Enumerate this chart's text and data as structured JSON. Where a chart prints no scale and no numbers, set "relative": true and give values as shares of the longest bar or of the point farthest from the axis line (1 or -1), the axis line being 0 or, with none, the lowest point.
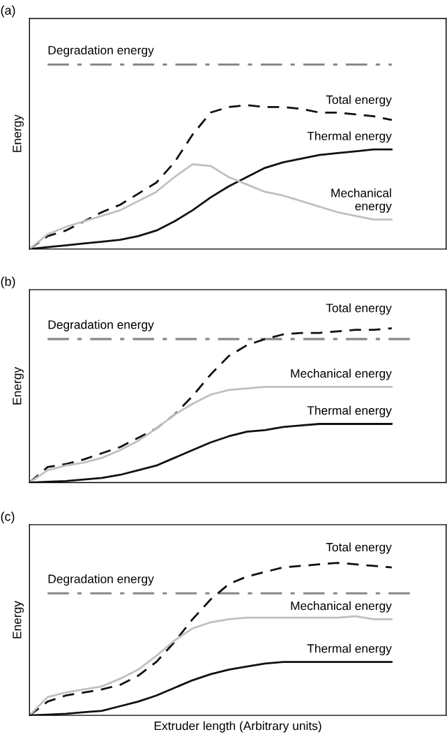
{
  "chart_data": [
    {
      "type": "line",
      "title": "(a)",
      "ylabel": "Energy",
      "relative": true,
      "categories": [
        null,
        null,
        null,
        null,
        null,
        null,
        null,
        null,
        null,
        null,
        null,
        null,
        null,
        null,
        null,
        null,
        null,
        null,
        null,
        null,
        null,
        null,
        null,
        null
      ],
      "series": [
        {
          "name": "Degradation energy",
          "color": "#888888",
          "line_style": "dashdot",
          "values": [
            null,
            1,
            1,
            1,
            1,
            1,
            1,
            1,
            1,
            1,
            1,
            1,
            1,
            1,
            1,
            1,
            1,
            1,
            1,
            1,
            1,
            null,
            null,
            null
          ]
        },
        {
          "name": "Total energy",
          "color": "#111111",
          "line_style": "dashed",
          "values": [
            0,
            0.07,
            0.1,
            0.15,
            0.2,
            0.24,
            0.3,
            0.36,
            0.47,
            0.62,
            0.74,
            0.77,
            0.78,
            0.77,
            0.77,
            0.76,
            0.74,
            0.74,
            0.73,
            0.72,
            0.7,
            null,
            null,
            null
          ]
        },
        {
          "name": "Thermal energy",
          "color": "#111111",
          "line_style": "solid",
          "values": [
            0,
            0.01,
            0.02,
            0.03,
            0.04,
            0.05,
            0.07,
            0.1,
            0.15,
            0.21,
            0.28,
            0.34,
            0.39,
            0.44,
            0.47,
            0.49,
            0.51,
            0.52,
            0.53,
            0.54,
            0.54,
            null,
            null,
            null
          ]
        },
        {
          "name": "Mechanical\nenergy",
          "color": "#c0c0c0",
          "line_style": "solid",
          "values": [
            0,
            0.08,
            0.12,
            0.15,
            0.18,
            0.21,
            0.26,
            0.31,
            0.39,
            0.46,
            0.45,
            0.39,
            0.35,
            0.31,
            0.29,
            0.26,
            0.23,
            0.2,
            0.18,
            0.16,
            0.16,
            null,
            null,
            null
          ]
        }
      ]
    },
    {
      "type": "line",
      "title": "(b)",
      "ylabel": "Energy",
      "relative": true,
      "categories": [
        null,
        null,
        null,
        null,
        null,
        null,
        null,
        null,
        null,
        null,
        null,
        null,
        null,
        null,
        null,
        null,
        null,
        null,
        null,
        null,
        null,
        null,
        null,
        null
      ],
      "series": [
        {
          "name": "Degradation energy",
          "color": "#888888",
          "line_style": "dashdot",
          "values": [
            null,
            0.93,
            0.93,
            0.93,
            0.93,
            0.93,
            0.93,
            0.93,
            0.93,
            0.93,
            0.93,
            0.93,
            0.93,
            0.93,
            0.93,
            0.93,
            0.93,
            0.93,
            0.93,
            0.93,
            0.93,
            0.93,
            null,
            null
          ]
        },
        {
          "name": "Total energy",
          "color": "#111111",
          "line_style": "dashed",
          "values": [
            0,
            0.1,
            0.12,
            0.15,
            0.19,
            0.23,
            0.29,
            0.35,
            0.44,
            0.56,
            0.7,
            0.82,
            0.89,
            0.93,
            0.96,
            0.97,
            0.97,
            0.98,
            0.99,
            0.99,
            1,
            null,
            null,
            null
          ]
        },
        {
          "name": "Mechanical energy",
          "color": "#c0c0c0",
          "line_style": "solid",
          "values": [
            0,
            0.08,
            0.11,
            0.13,
            0.16,
            0.21,
            0.27,
            0.35,
            0.44,
            0.51,
            0.57,
            0.6,
            0.61,
            0.62,
            0.62,
            0.62,
            0.62,
            0.62,
            0.62,
            0.62,
            0.62,
            null,
            null,
            null
          ]
        },
        {
          "name": "Thermal energy",
          "color": "#111111",
          "line_style": "solid",
          "values": [
            0,
            0.005,
            0.01,
            0.02,
            0.03,
            0.05,
            0.08,
            0.11,
            0.16,
            0.21,
            0.26,
            0.3,
            0.33,
            0.34,
            0.36,
            0.37,
            0.38,
            0.38,
            0.38,
            0.38,
            0.38,
            null,
            null,
            null
          ]
        }
      ]
    },
    {
      "type": "line",
      "title": "(c)",
      "xlabel": "Extruder length (Arbitrary units)",
      "ylabel": "Energy",
      "relative": true,
      "categories": [
        null,
        null,
        null,
        null,
        null,
        null,
        null,
        null,
        null,
        null,
        null,
        null,
        null,
        null,
        null,
        null,
        null,
        null,
        null,
        null,
        null,
        null,
        null,
        null
      ],
      "series": [
        {
          "name": "Degradation energy",
          "color": "#888888",
          "line_style": "dashdot",
          "values": [
            null,
            0.8,
            0.8,
            0.8,
            0.8,
            0.8,
            0.8,
            0.8,
            0.8,
            0.8,
            0.8,
            0.8,
            0.8,
            0.8,
            0.8,
            0.8,
            0.8,
            0.8,
            0.8,
            0.8,
            0.8,
            0.8,
            null,
            null
          ]
        },
        {
          "name": "Total energy",
          "color": "#111111",
          "line_style": "dashed",
          "values": [
            0,
            0.09,
            0.13,
            0.15,
            0.17,
            0.2,
            0.26,
            0.35,
            0.48,
            0.63,
            0.76,
            0.86,
            0.91,
            0.94,
            0.97,
            0.98,
            0.99,
            1,
            0.99,
            0.98,
            0.97,
            null,
            null,
            null
          ]
        },
        {
          "name": "Mechanical energy",
          "color": "#c0c0c0",
          "line_style": "solid",
          "values": [
            0,
            0.12,
            0.15,
            0.17,
            0.19,
            0.24,
            0.3,
            0.39,
            0.49,
            0.57,
            0.61,
            0.63,
            0.64,
            0.64,
            0.64,
            0.64,
            0.64,
            0.64,
            0.65,
            0.63,
            0.63,
            null,
            null,
            null
          ]
        },
        {
          "name": "Thermal energy",
          "color": "#111111",
          "line_style": "solid",
          "values": [
            0,
            0.005,
            0.01,
            0.02,
            0.03,
            0.06,
            0.09,
            0.13,
            0.18,
            0.23,
            0.27,
            0.3,
            0.32,
            0.34,
            0.35,
            0.35,
            0.35,
            0.35,
            0.35,
            0.35,
            0.35,
            null,
            null,
            null
          ]
        }
      ]
    }
  ]
}
